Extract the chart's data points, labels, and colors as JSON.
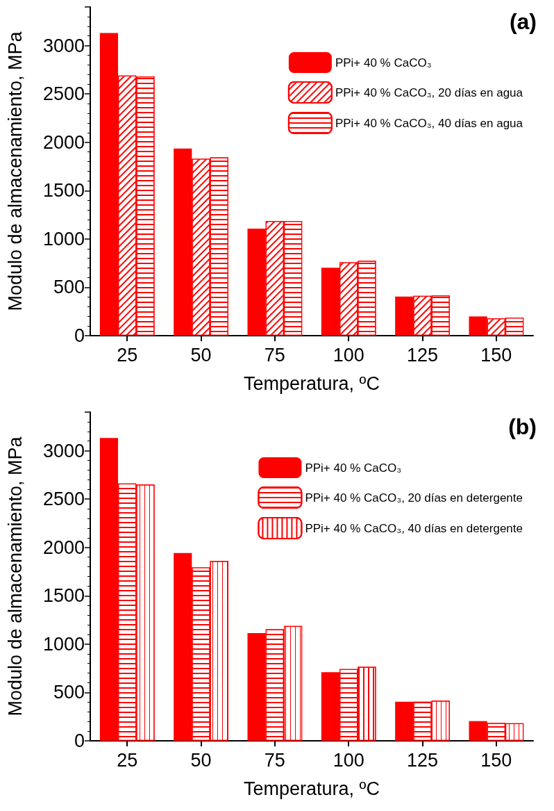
{
  "chart_data": [
    {
      "type": "bar",
      "title": "(a)",
      "xlabel": "Temperatura, ºC",
      "ylabel": "Modulo de almacenamiento, MPa",
      "categories": [
        "25",
        "50",
        "75",
        "100",
        "125",
        "150"
      ],
      "series": [
        {
          "name": "PPi+ 40 % CaCO₃",
          "color": "#ff0000",
          "values": [
            3130,
            1935,
            1107,
            702,
            405,
            199
          ]
        },
        {
          "name": "PPi+ 40 % CaCO₃, 20 días en agua",
          "color": "#ff0000",
          "values": [
            2690,
            1830,
            1186,
            759,
            411,
            180
          ]
        },
        {
          "name": "PPi+ 40 % CaCO₃, 40 días en agua",
          "color": "#ff0000",
          "values": [
            2681,
            1843,
            1186,
            775,
            417,
            187
          ]
        }
      ],
      "ylim": [
        0,
        3400
      ],
      "yticks": [
        0,
        500,
        1000,
        1500,
        2000,
        2500,
        3000
      ],
      "grid": false,
      "legend": "top right"
    },
    {
      "type": "bar",
      "title": "(b)",
      "xlabel": "Temperatura, ºC",
      "ylabel": "Modulo de almacenamiento, MPa",
      "categories": [
        "25",
        "50",
        "75",
        "100",
        "125",
        "150"
      ],
      "series": [
        {
          "name": "PPi+ 40 % CaCO₃",
          "color": "#ff0000",
          "values": [
            3132,
            1942,
            1114,
            709,
            405,
            204
          ]
        },
        {
          "name": "PPi+ 40 % CaCO₃, 20 días en detergente",
          "color": "#ff0000",
          "values": [
            2661,
            1794,
            1154,
            742,
            405,
            185
          ]
        },
        {
          "name": "PPi+ 40 % CaCO₃, 40 días en detergente",
          "color": "#ff0000",
          "values": [
            2651,
            1860,
            1187,
            765,
            415,
            181
          ]
        }
      ],
      "ylim": [
        0,
        3400
      ],
      "yticks": [
        0,
        500,
        1000,
        1500,
        2000,
        2500,
        3000
      ],
      "grid": false,
      "legend": "top right"
    }
  ]
}
